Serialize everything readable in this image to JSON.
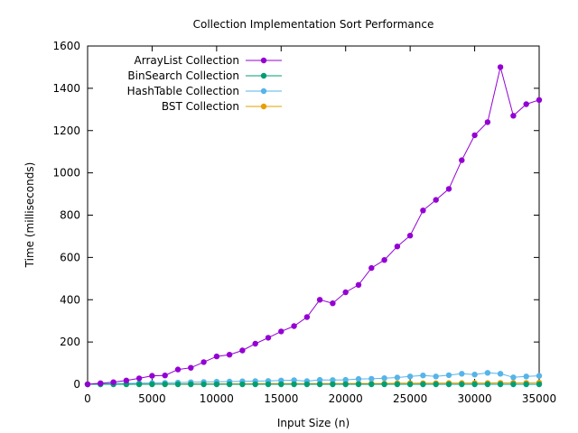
{
  "chart_data": {
    "type": "line",
    "title": "Collection Implementation Sort Performance",
    "xlabel": "Input Size (n)",
    "ylabel": "Time (milliseconds)",
    "xlim": [
      0,
      35000
    ],
    "ylim": [
      0,
      1600
    ],
    "xticks": [
      0,
      5000,
      10000,
      15000,
      20000,
      25000,
      30000,
      35000
    ],
    "yticks": [
      0,
      200,
      400,
      600,
      800,
      1000,
      1200,
      1400,
      1600
    ],
    "grid": false,
    "legend_position": "top-left",
    "x": [
      0,
      1000,
      2000,
      3000,
      4000,
      5000,
      6000,
      7000,
      8000,
      9000,
      10000,
      11000,
      12000,
      13000,
      14000,
      15000,
      16000,
      17000,
      18000,
      19000,
      20000,
      21000,
      22000,
      23000,
      24000,
      25000,
      26000,
      27000,
      28000,
      29000,
      30000,
      31000,
      32000,
      33000,
      34000,
      35000
    ],
    "series": [
      {
        "name": "ArrayList Collection",
        "color": "#9400d3",
        "values": [
          0,
          5,
          10,
          18,
          28,
          40,
          42,
          70,
          78,
          105,
          132,
          140,
          160,
          192,
          220,
          250,
          275,
          318,
          400,
          383,
          435,
          470,
          550,
          588,
          652,
          703,
          822,
          872,
          924,
          1060,
          1178,
          1240,
          1500,
          1270,
          1325,
          1345
        ]
      },
      {
        "name": "BinSearch Collection",
        "color": "#009e73",
        "values": [
          0,
          0,
          0,
          0,
          0,
          0,
          0,
          0,
          0,
          0,
          0,
          0,
          0,
          0,
          0,
          0,
          0,
          0,
          0,
          0,
          0,
          0,
          0,
          0,
          0,
          0,
          0,
          0,
          0,
          0,
          0,
          0,
          0,
          0,
          0,
          0
        ]
      },
      {
        "name": "HashTable Collection",
        "color": "#56b4e9",
        "values": [
          0,
          2,
          3,
          4,
          5,
          6,
          7,
          8,
          10,
          11,
          12,
          13,
          14,
          15,
          16,
          18,
          19,
          15,
          21,
          20,
          21,
          25,
          26,
          29,
          32,
          37,
          42,
          37,
          43,
          50,
          46,
          54,
          50,
          33,
          37,
          40
        ]
      },
      {
        "name": "BST Collection",
        "color": "#e69f00",
        "values": [
          0,
          0,
          1,
          1,
          1,
          1,
          1,
          1,
          2,
          2,
          2,
          2,
          2,
          3,
          3,
          3,
          3,
          3,
          3,
          4,
          4,
          4,
          4,
          4,
          5,
          5,
          5,
          5,
          6,
          6,
          6,
          6,
          7,
          7,
          7,
          8
        ]
      }
    ]
  }
}
